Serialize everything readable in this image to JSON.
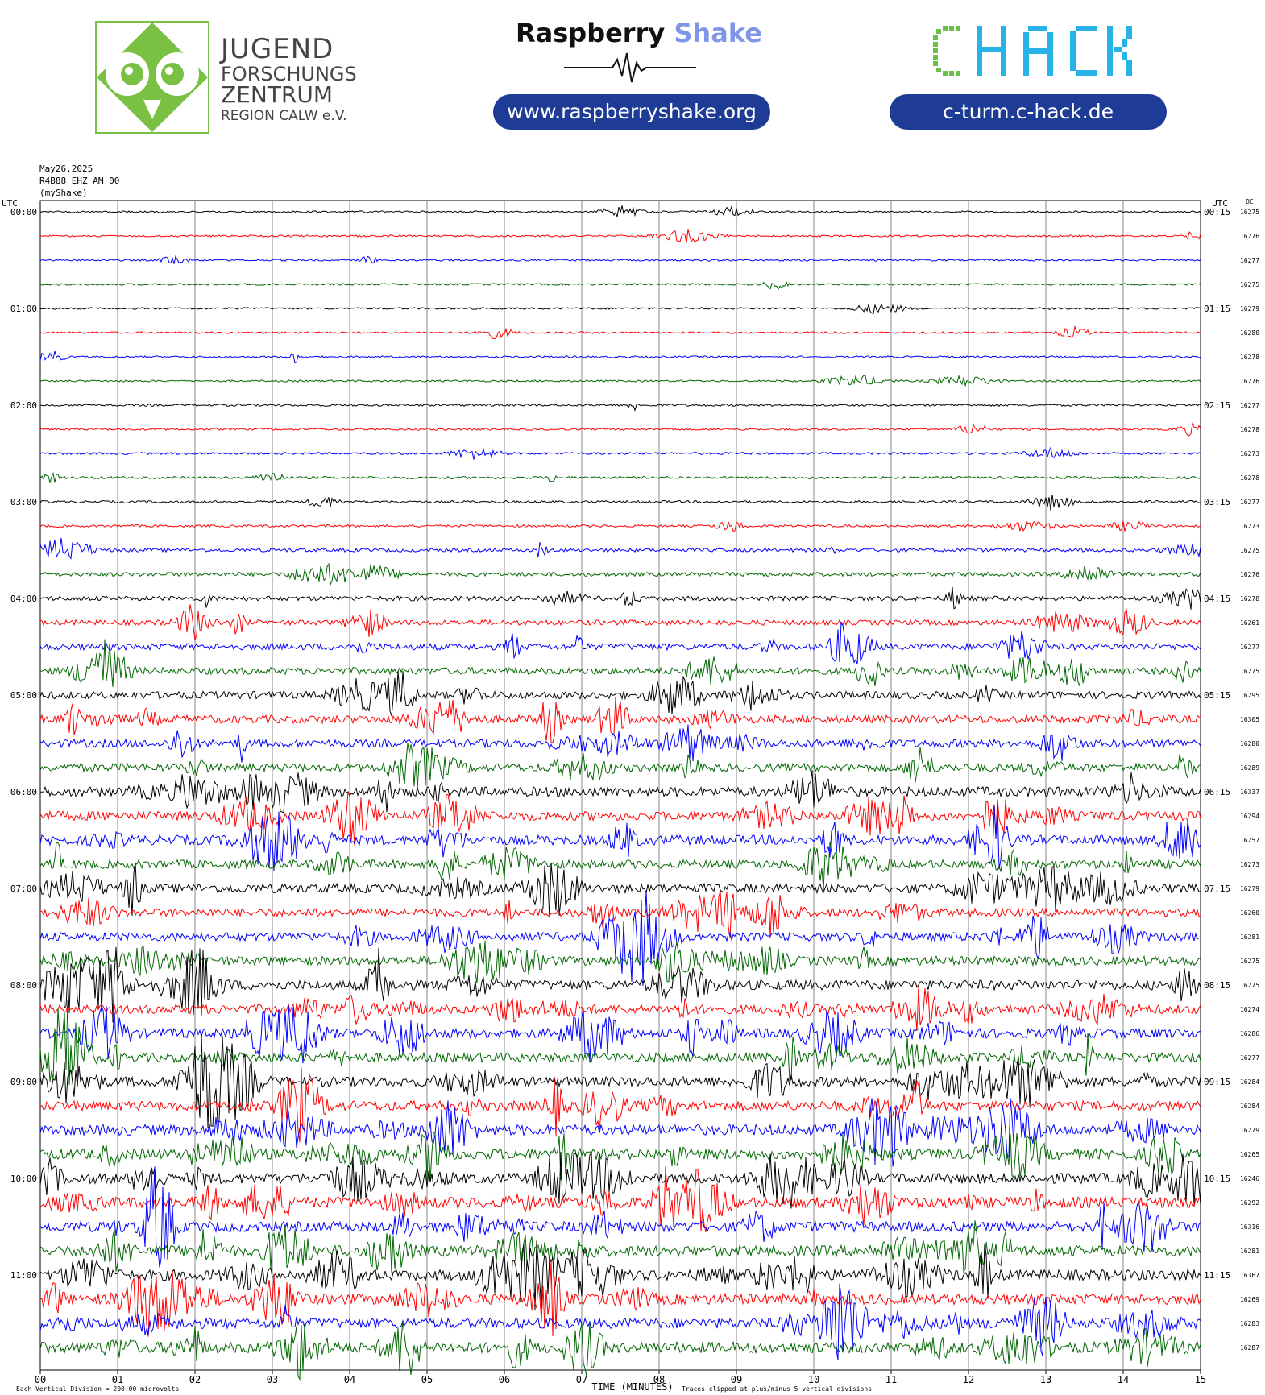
{
  "header": {
    "org_name": [
      "JUGEND",
      "FORSCHUNGS",
      "ZENTRUM",
      "REGION CALW e.V."
    ],
    "rs_brand_a": "Raspberry",
    "rs_brand_b": "Shake",
    "rs_url": "www.raspberryshake.org",
    "chack_logo": "CHACK",
    "chack_url": "c-turm.c-hack.de",
    "colors": {
      "owl": "#79c043",
      "pill": "#1e3b96",
      "shake": "#7f96e8",
      "chack_green": "#6cc04a",
      "chack_blue": "#27b3e8"
    }
  },
  "meta": {
    "date": "May26,2025",
    "station": "R4B88 EHZ AM 00",
    "source": "(myShake)"
  },
  "chart_data": {
    "type": "line",
    "title": "",
    "left_axis_title": "UTC",
    "right_axis_title": "UTC",
    "dc_title": "DC",
    "xlabel": "TIME (MINUTES)",
    "footer_left": "Each Vertical Division = 200.00 microvolts",
    "footer_right": "Traces clipped at plus/minus 5 vertical divisions",
    "x_ticks": [
      "00",
      "01",
      "02",
      "03",
      "04",
      "05",
      "06",
      "07",
      "08",
      "09",
      "10",
      "11",
      "12",
      "13",
      "14",
      "15"
    ],
    "xlim": [
      0,
      15
    ],
    "grid": true,
    "trace_colors": [
      "#000000",
      "#ff0000",
      "#0000ff",
      "#006600"
    ],
    "left_hour_labels": [
      "00:00",
      "01:00",
      "02:00",
      "03:00",
      "04:00",
      "05:00",
      "06:00",
      "07:00",
      "08:00",
      "09:00",
      "10:00",
      "11:00"
    ],
    "right_hour_labels": [
      "00:15",
      "01:15",
      "02:15",
      "03:15",
      "04:15",
      "05:15",
      "06:15",
      "07:15",
      "08:15",
      "09:15",
      "10:15",
      "11:15"
    ],
    "dc_offsets": [
      16275,
      16276,
      16277,
      16275,
      16279,
      16280,
      16278,
      16276,
      16277,
      16278,
      16273,
      16278,
      16277,
      16273,
      16275,
      16276,
      16278,
      16261,
      16277,
      16275,
      16295,
      16305,
      16280,
      16289,
      16337,
      16294,
      16257,
      16273,
      16279,
      16260,
      16281,
      16275,
      16275,
      16274,
      16286,
      16277,
      16284,
      16284,
      16279,
      16265,
      16246,
      16292,
      16316,
      16281,
      16367,
      16269,
      16283,
      16287
    ],
    "activity_level": [
      0.05,
      0.05,
      0.05,
      0.05,
      0.05,
      0.05,
      0.05,
      0.05,
      0.08,
      0.07,
      0.08,
      0.1,
      0.1,
      0.1,
      0.2,
      0.25,
      0.3,
      0.35,
      0.45,
      0.5,
      0.55,
      0.6,
      0.6,
      0.6,
      0.75,
      0.7,
      0.75,
      0.65,
      0.7,
      0.6,
      0.65,
      0.7,
      0.75,
      0.7,
      0.75,
      0.7,
      0.75,
      0.75,
      0.85,
      0.85,
      0.8,
      0.85,
      0.8,
      0.85,
      0.85,
      0.85,
      0.8,
      0.85
    ]
  }
}
